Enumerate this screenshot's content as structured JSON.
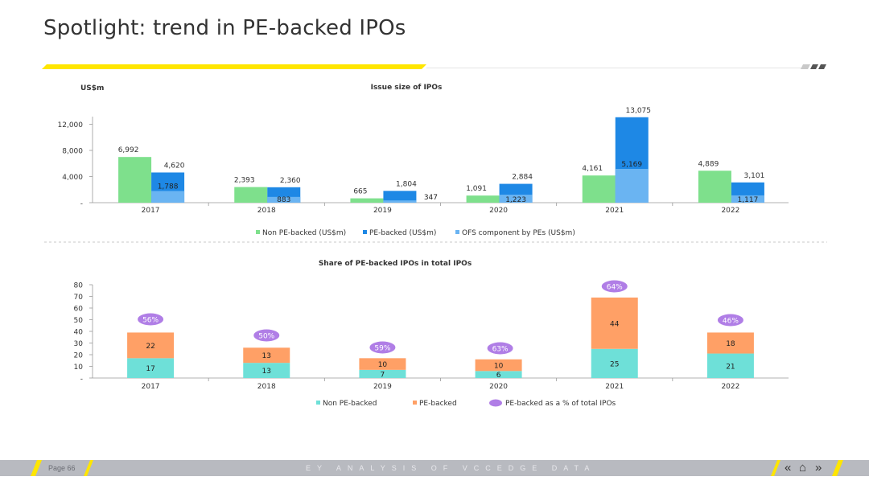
{
  "page": {
    "title": "Spotlight: trend in PE-backed IPOs",
    "page_number": "Page 66",
    "footer_text": "EY ANALYSIS OF VCCEDGE DATA",
    "nav": {
      "prev": "«",
      "home": "⌂",
      "next": "»"
    },
    "colors": {
      "accent_yellow": "#ffe600",
      "footer_gray": "#b8bac0"
    }
  },
  "chart_data": [
    {
      "type": "bar",
      "title": "Issue size of IPOs",
      "ylabel": "US$m",
      "categories": [
        "2017",
        "2018",
        "2019",
        "2020",
        "2021",
        "2022"
      ],
      "series": [
        {
          "name": "Non PE-backed (US$m)",
          "color": "#7ee08c",
          "values": [
            6992,
            2393,
            665,
            1091,
            4161,
            4889
          ],
          "labels": [
            "6,992",
            "2,393",
            "665",
            "1,091",
            "4,161",
            "4,889"
          ]
        },
        {
          "name": "PE-backed (US$m)",
          "color": "#1e88e5",
          "values": [
            4620,
            2360,
            1804,
            2884,
            13075,
            3101
          ],
          "labels": [
            "4,620",
            "2,360",
            "1,804",
            "2,884",
            "13,075",
            "3,101"
          ]
        },
        {
          "name": "OFS component by PEs (US$m)",
          "color": "#6ab4f2",
          "values": [
            1788,
            883,
            347,
            1223,
            5169,
            1117
          ],
          "labels": [
            "1,788",
            "883",
            "347",
            "1,223",
            "5,169",
            "1,117"
          ]
        }
      ],
      "yticks": [
        "-",
        "4,000",
        "8,000",
        "12,000"
      ],
      "ylim": [
        0,
        14000
      ],
      "legend": "bottom"
    },
    {
      "type": "bar",
      "title": "Share of PE-backed IPOs in total IPOs",
      "categories": [
        "2017",
        "2018",
        "2019",
        "2020",
        "2021",
        "2022"
      ],
      "series": [
        {
          "name": "Non PE-backed",
          "color": "#6ee0d8",
          "values": [
            17,
            13,
            7,
            6,
            25,
            21
          ]
        },
        {
          "name": "PE-backed",
          "color": "#ffa066",
          "values": [
            22,
            13,
            10,
            10,
            44,
            18
          ]
        },
        {
          "name": "PE-backed as a % of total IPOs",
          "color": "#b07ee6",
          "values": [
            56,
            50,
            59,
            63,
            64,
            46
          ],
          "labels": [
            "56%",
            "50%",
            "59%",
            "63%",
            "64%",
            "46%"
          ]
        }
      ],
      "yticks": [
        "-",
        "10",
        "20",
        "30",
        "40",
        "50",
        "60",
        "70",
        "80"
      ],
      "ylim": [
        0,
        80
      ],
      "legend": "bottom"
    }
  ]
}
